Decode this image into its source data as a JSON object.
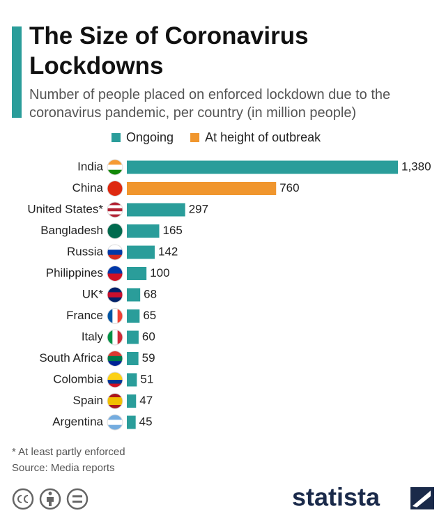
{
  "chart_data": {
    "type": "bar",
    "orientation": "horizontal",
    "title": "The Size of Coronavirus Lockdowns",
    "subtitle": "Number of people placed on enforced lockdown due to the coronavirus pandemic, per country (in million people)",
    "categories": [
      "India",
      "China",
      "United States*",
      "Bangladesh",
      "Russia",
      "Philippines",
      "UK*",
      "France",
      "Italy",
      "South Africa",
      "Colombia",
      "Spain",
      "Argentina"
    ],
    "series": [
      {
        "name": "Ongoing",
        "color": "#2a9d9a",
        "values": [
          1380,
          null,
          297,
          165,
          142,
          100,
          68,
          65,
          60,
          59,
          51,
          47,
          45
        ],
        "value_labels": [
          "1,380",
          null,
          "297",
          "165",
          "142",
          "100",
          "68",
          "65",
          "60",
          "59",
          "51",
          "47",
          "45"
        ]
      },
      {
        "name": "At height of outbreak",
        "color": "#f0962e",
        "values": [
          null,
          760,
          null,
          null,
          null,
          null,
          null,
          null,
          null,
          null,
          null,
          null,
          null
        ]
      }
    ],
    "notes": [
      "* At least partly enforced",
      "Source: Media reports"
    ],
    "logo": "statista"
  }
}
